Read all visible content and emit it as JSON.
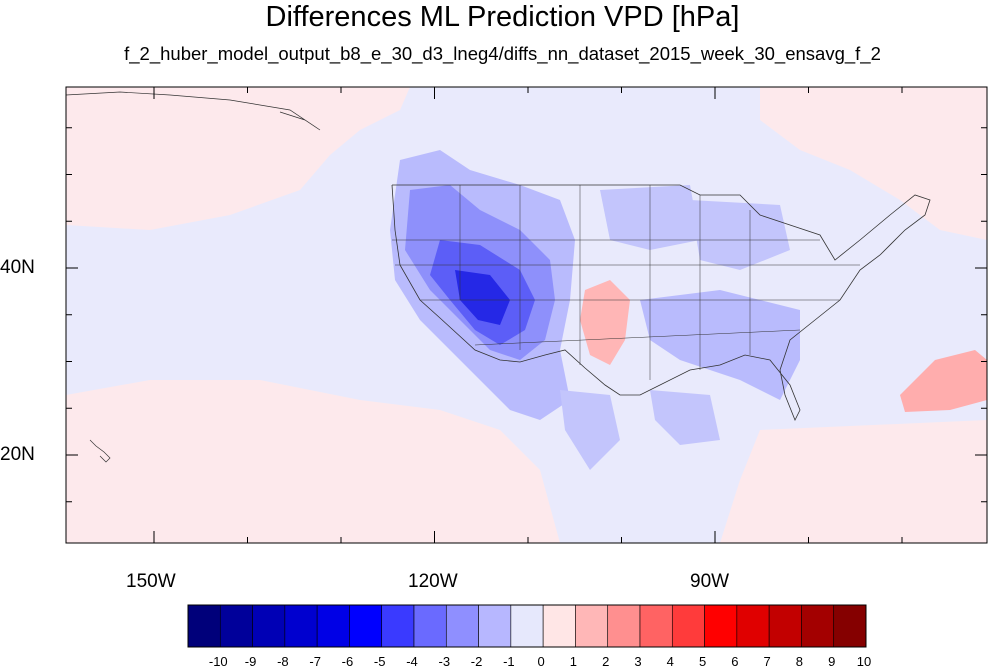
{
  "title": "Differences ML Prediction VPD [hPa]",
  "subtitle": "f_2_huber_model_output_b8_e_30_d3_lneg4/diffs_nn_dataset_2015_week_30_ensavg_f_2",
  "axes": {
    "lon_ticks": [
      "150W",
      "120W",
      "90W"
    ],
    "lat_ticks": [
      "40N",
      "20N"
    ]
  },
  "colorbar": {
    "labels": [
      "-10",
      "-9",
      "-8",
      "-7",
      "-6",
      "-5",
      "-4",
      "-3",
      "-2",
      "-1",
      "0",
      "1",
      "2",
      "3",
      "4",
      "5",
      "6",
      "7",
      "8",
      "9",
      "10"
    ],
    "colors": [
      "#00007a",
      "#00009a",
      "#0000b5",
      "#0000cf",
      "#0000e6",
      "#0000ff",
      "#3a3aff",
      "#6a6aff",
      "#8f8fff",
      "#b7b7ff",
      "#e6e8fc",
      "#ffe6e6",
      "#ffb7b7",
      "#ff8f8f",
      "#ff6363",
      "#ff3b3b",
      "#ff0000",
      "#e00000",
      "#c20000",
      "#a30000",
      "#850000"
    ]
  },
  "colors": {
    "background_ocean": "#eceefc",
    "outline": "#333333"
  }
}
